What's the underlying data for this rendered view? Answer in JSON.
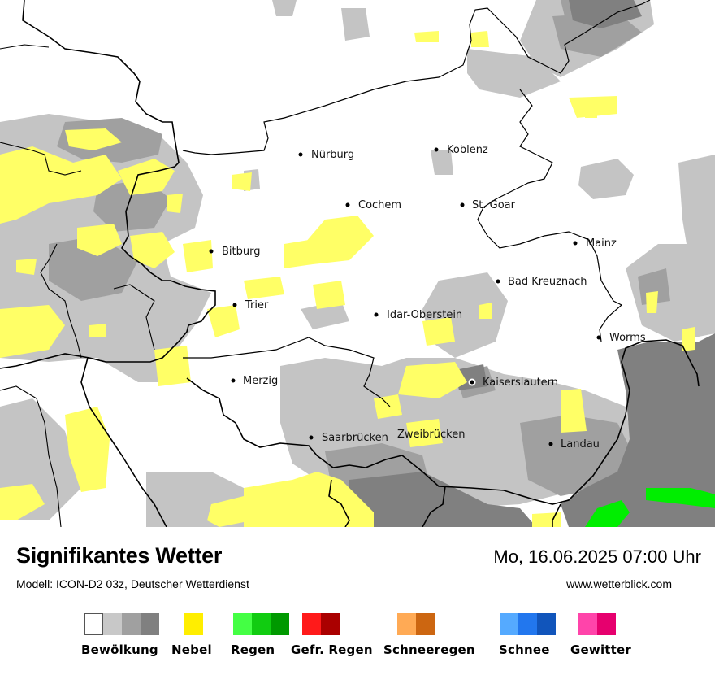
{
  "header": {
    "title": "Signifikantes Wetter",
    "model": "Modell: ICON-D2 03z, Deutscher Wetterdienst",
    "datetime": "Mo, 16.06.2025 07:00 Uhr",
    "website": "www.wetterblick.com"
  },
  "map": {
    "cities": [
      {
        "name": "Nürburg"
      },
      {
        "name": "Koblenz"
      },
      {
        "name": "Cochem"
      },
      {
        "name": "St. Goar"
      },
      {
        "name": "Bitburg"
      },
      {
        "name": "Mainz"
      },
      {
        "name": "Bad Kreuznach"
      },
      {
        "name": "Trier"
      },
      {
        "name": "Idar-Oberstein"
      },
      {
        "name": "Worms"
      },
      {
        "name": "Merzig"
      },
      {
        "name": "Kaiserslautern"
      },
      {
        "name": "Saarbrücken"
      },
      {
        "name": "Zweibrücken"
      },
      {
        "name": "Landau"
      }
    ],
    "colors": {
      "cloud_light": "#c4c4c4",
      "cloud_medium": "#a0a0a0",
      "cloud_dark": "#808080",
      "fog": "#ffff66",
      "rain": "#00ee00",
      "border": "#000000"
    }
  },
  "legend": [
    {
      "label": "Bewölkung",
      "colors": [
        "#ffffff",
        "#c8c8c8",
        "#a0a0a0",
        "#808080"
      ]
    },
    {
      "label": "Nebel",
      "colors": [
        "#ffee00"
      ]
    },
    {
      "label": "Regen",
      "colors": [
        "#44ff44",
        "#11cc11",
        "#009900"
      ]
    },
    {
      "label": "Gefr. Regen",
      "colors": [
        "#ff1a1a",
        "#aa0000"
      ]
    },
    {
      "label": "Schneeregen",
      "colors": [
        "#ffaa55",
        "#cc6611"
      ]
    },
    {
      "label": "Schnee",
      "colors": [
        "#55aaff",
        "#2277ee",
        "#1155bb"
      ]
    },
    {
      "label": "Gewitter",
      "colors": [
        "#ff44aa",
        "#e6006e"
      ]
    }
  ]
}
